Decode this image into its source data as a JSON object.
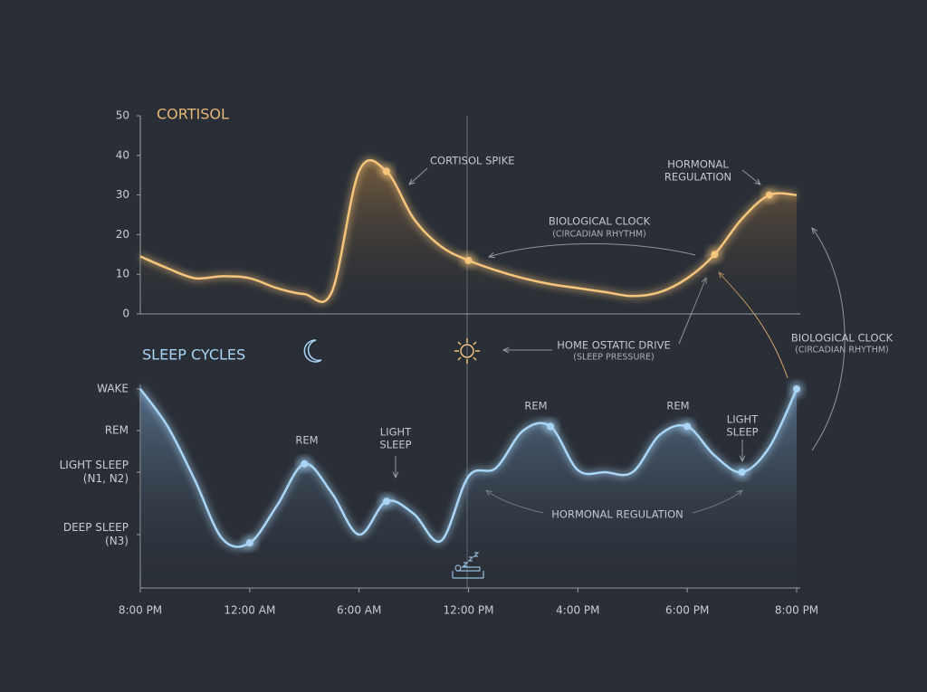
{
  "chart_data": [
    {
      "type": "line",
      "title": "CORTISOL",
      "color": "#f6c57c",
      "ylim": [
        0,
        50
      ],
      "yticks": [
        0,
        10,
        20,
        30,
        40,
        50
      ],
      "values": [
        14.5,
        11.5,
        9,
        9.5,
        9,
        6.5,
        5,
        5.5,
        36,
        36,
        24,
        17,
        13.5,
        11,
        9,
        7.5,
        6.5,
        5.5,
        4.5,
        5.5,
        9,
        15,
        24,
        30,
        30
      ],
      "highlights": [
        9,
        12,
        21,
        23
      ],
      "annotations": [
        [
          "CORTISOL SPIKE"
        ],
        [
          "HORMONAL",
          "REGULATION"
        ],
        [
          "BIOLOGICAL CLOCK",
          "(CIRCADIAN RHYTHM)"
        ],
        [
          "HOME OSTATIC DRIVE",
          "(SLEEP PRESSURE)"
        ]
      ]
    },
    {
      "type": "line",
      "title": "SLEEP CYCLES",
      "color": "#a9d6f7",
      "ylim": [
        -0.8,
        4
      ],
      "yticks": [
        {
          "value": 4,
          "label": [
            "WAKE"
          ]
        },
        {
          "value": 3,
          "label": [
            "REM"
          ]
        },
        {
          "value": 2,
          "label": [
            "LIGHT SLEEP",
            "(N1, N2)"
          ]
        },
        {
          "value": 0.5,
          "label": [
            "DEEP SLEEP",
            "(N3)"
          ]
        }
      ],
      "categories": [
        "8:00 PM",
        null,
        null,
        null,
        "12:00 AM",
        null,
        null,
        null,
        "6:00 AM",
        null,
        null,
        null,
        "12:00 PM",
        null,
        null,
        null,
        "4:00 PM",
        null,
        null,
        null,
        "6:00 PM",
        null,
        null,
        null,
        "8:00 PM"
      ],
      "values": [
        4,
        3.1,
        1.8,
        0.4,
        0.3,
        1.2,
        2.2,
        1.5,
        0.5,
        1.3,
        1.0,
        0.35,
        1.9,
        2.1,
        3.0,
        3.1,
        2.05,
        2,
        2,
        2.9,
        3.1,
        2.4,
        2,
        2.6,
        4
      ],
      "highlights": [
        4,
        6,
        9,
        15,
        20,
        22,
        24
      ],
      "annotations": [
        [
          "REM"
        ],
        [
          "LIGHT",
          "SLEEP"
        ],
        [
          "REM"
        ],
        [
          "REM"
        ],
        [
          "LIGHT",
          "SLEEP"
        ],
        [
          "HORMONAL REGULATION"
        ],
        [
          "BIOLOGICAL CLOCK",
          "(CIRCADIAN RHYTHM)"
        ]
      ]
    }
  ]
}
